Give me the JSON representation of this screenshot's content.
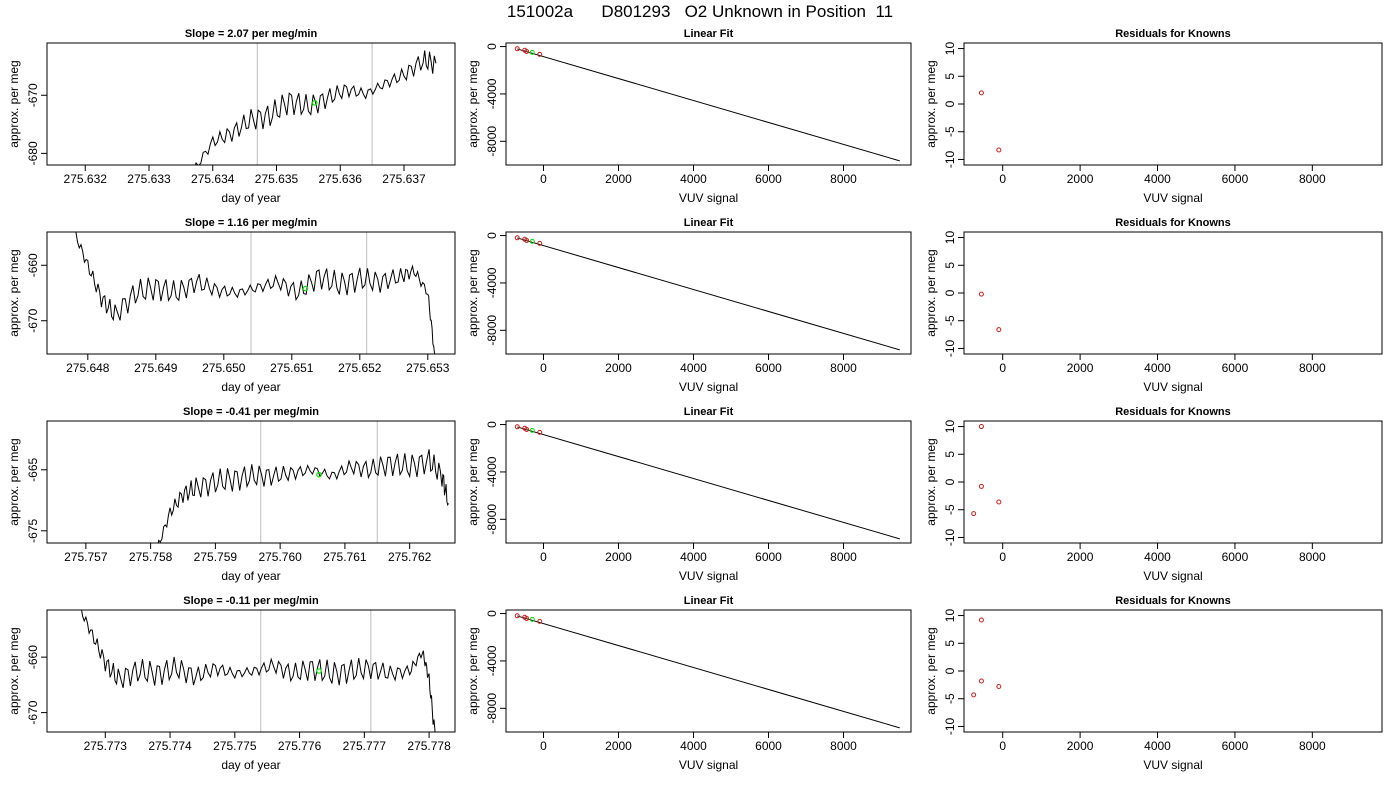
{
  "page_title": "151002a      D801293   O2 Unknown in Position  11",
  "chart_data": [
    {
      "type": "line",
      "kind": "timeseries",
      "row": 0,
      "title": "Slope =  2.07  per meg/min",
      "xlabel": "day of year",
      "ylabel": "approx. per meg",
      "xlim": [
        275.6314,
        275.6378
      ],
      "ylim": [
        -682,
        -661
      ],
      "xticks": [
        "275.632",
        "275.633",
        "275.634",
        "275.635",
        "275.636",
        "275.637"
      ],
      "yticks": [
        "-670",
        "-680"
      ],
      "vlines": [
        275.6347,
        275.6365
      ],
      "green_point": [
        275.6356,
        -671.3
      ],
      "series": [
        {
          "x": [
            275.6337,
            275.634,
            275.6343,
            275.6346,
            275.6349,
            275.6352,
            275.6355,
            275.6358,
            275.6361,
            275.6364,
            275.6367,
            275.637,
            275.6373,
            275.6375
          ],
          "y": [
            -683,
            -678,
            -676.5,
            -674.2,
            -673.5,
            -671,
            -672,
            -670.5,
            -669,
            -669.8,
            -668,
            -666.5,
            -664,
            -664.5
          ]
        }
      ]
    },
    {
      "type": "scatter",
      "kind": "fit",
      "row": 0,
      "title": "Linear Fit",
      "xlabel": "VUV signal",
      "ylabel": "approx. per meg",
      "xlim": [
        -1000,
        9800
      ],
      "ylim": [
        -10000,
        300
      ],
      "xticks": [
        "0",
        "2000",
        "4000",
        "6000",
        "8000"
      ],
      "yticks": [
        "0",
        "-4000",
        "-8000"
      ],
      "fit_line": [
        [
          -700,
          -200
        ],
        [
          9500,
          -9650
        ]
      ],
      "points": [
        [
          -700,
          -190
        ],
        [
          -500,
          -310
        ],
        [
          -450,
          -420
        ],
        [
          -100,
          -660
        ]
      ],
      "green_points": [
        [
          -300,
          -490
        ]
      ]
    },
    {
      "type": "scatter",
      "kind": "residuals",
      "row": 0,
      "title": "Residuals for Knowns",
      "xlabel": "VUV signal",
      "ylabel": "approx. per meg",
      "xlim": [
        -1000,
        9800
      ],
      "ylim": [
        -11,
        11
      ],
      "xticks": [
        "0",
        "2000",
        "4000",
        "6000",
        "8000"
      ],
      "yticks": [
        "10",
        "5",
        "0",
        "-5",
        "-10"
      ],
      "points": [
        [
          -550,
          2
        ],
        [
          -100,
          -8.3
        ]
      ]
    },
    {
      "type": "line",
      "kind": "timeseries",
      "row": 1,
      "title": "Slope =  1.16  per meg/min",
      "xlabel": "day of year",
      "ylabel": "approx. per meg",
      "xlim": [
        275.6474,
        275.6534
      ],
      "ylim": [
        -676,
        -654
      ],
      "xticks": [
        "275.648",
        "275.649",
        "275.650",
        "275.651",
        "275.652",
        "275.653"
      ],
      "yticks": [
        "-660",
        "-670"
      ],
      "vlines": [
        275.6504,
        275.6521
      ],
      "green_point": [
        275.6512,
        -664.2
      ],
      "series": [
        {
          "x": [
            275.6478,
            275.648,
            275.6482,
            275.6484,
            275.6487,
            275.649,
            275.6493,
            275.6496,
            275.6499,
            275.6502,
            275.6505,
            275.6508,
            275.6511,
            275.6514,
            275.6517,
            275.652,
            275.6523,
            275.6526,
            275.6528,
            275.653,
            275.6531
          ],
          "y": [
            -654,
            -660,
            -666,
            -669,
            -665,
            -664,
            -665,
            -663,
            -664.5,
            -665,
            -664,
            -663,
            -665,
            -662,
            -663.5,
            -662.5,
            -663,
            -662,
            -661,
            -665,
            -676
          ]
        }
      ]
    },
    {
      "type": "scatter",
      "kind": "fit",
      "row": 1,
      "title": "Linear Fit",
      "xlabel": "VUV signal",
      "ylabel": "approx. per meg",
      "xlim": [
        -1000,
        9800
      ],
      "ylim": [
        -10000,
        300
      ],
      "xticks": [
        "0",
        "2000",
        "4000",
        "6000",
        "8000"
      ],
      "yticks": [
        "0",
        "-4000",
        "-8000"
      ],
      "fit_line": [
        [
          -700,
          -200
        ],
        [
          9500,
          -9650
        ]
      ],
      "points": [
        [
          -700,
          -190
        ],
        [
          -500,
          -310
        ],
        [
          -450,
          -420
        ],
        [
          -100,
          -660
        ]
      ],
      "green_points": [
        [
          -300,
          -490
        ]
      ]
    },
    {
      "type": "scatter",
      "kind": "residuals",
      "row": 1,
      "title": "Residuals for Knowns",
      "xlabel": "VUV signal",
      "ylabel": "approx. per meg",
      "xlim": [
        -1000,
        9800
      ],
      "ylim": [
        -11,
        11
      ],
      "xticks": [
        "0",
        "2000",
        "4000",
        "6000",
        "8000"
      ],
      "yticks": [
        "10",
        "5",
        "0",
        "-5",
        "-10"
      ],
      "points": [
        [
          -550,
          -0.2
        ],
        [
          -100,
          -6.6
        ]
      ]
    },
    {
      "type": "line",
      "kind": "timeseries",
      "row": 2,
      "title": "Slope =  -0.41  per meg/min",
      "xlabel": "day of year",
      "ylabel": "approx. per meg",
      "xlim": [
        275.7564,
        275.7627
      ],
      "ylim": [
        -677,
        -657
      ],
      "xticks": [
        "275.757",
        "275.758",
        "275.759",
        "275.760",
        "275.761",
        "275.762"
      ],
      "yticks": [
        "-665",
        "-675"
      ],
      "vlines": [
        275.7597,
        275.7615
      ],
      "green_point": [
        275.7606,
        -665.8
      ],
      "series": [
        {
          "x": [
            275.7581,
            275.7583,
            275.7585,
            275.7587,
            275.759,
            275.7593,
            275.7596,
            275.7599,
            275.7602,
            275.7605,
            275.7608,
            275.7611,
            275.7614,
            275.7617,
            275.762,
            275.7623,
            275.7625,
            275.7626
          ],
          "y": [
            -678,
            -672,
            -669,
            -668,
            -667,
            -666.5,
            -666,
            -666,
            -665.5,
            -665,
            -666,
            -664.5,
            -665,
            -664,
            -664.5,
            -663.5,
            -666,
            -670.5
          ]
        }
      ]
    },
    {
      "type": "scatter",
      "kind": "fit",
      "row": 2,
      "title": "Linear Fit",
      "xlabel": "VUV signal",
      "ylabel": "approx. per meg",
      "xlim": [
        -1000,
        9800
      ],
      "ylim": [
        -10000,
        300
      ],
      "xticks": [
        "0",
        "2000",
        "4000",
        "6000",
        "8000"
      ],
      "yticks": [
        "0",
        "-4000",
        "-8000"
      ],
      "fit_line": [
        [
          -700,
          -200
        ],
        [
          9500,
          -9650
        ]
      ],
      "points": [
        [
          -700,
          -190
        ],
        [
          -500,
          -310
        ],
        [
          -450,
          -420
        ],
        [
          -100,
          -660
        ]
      ],
      "green_points": [
        [
          -300,
          -490
        ]
      ]
    },
    {
      "type": "scatter",
      "kind": "residuals",
      "row": 2,
      "title": "Residuals for Knowns",
      "xlabel": "VUV signal",
      "ylabel": "approx. per meg",
      "xlim": [
        -1000,
        9800
      ],
      "ylim": [
        -11,
        11
      ],
      "xticks": [
        "0",
        "2000",
        "4000",
        "6000",
        "8000"
      ],
      "yticks": [
        "10",
        "5",
        "0",
        "-5",
        "-10"
      ],
      "points": [
        [
          -750,
          -5.7
        ],
        [
          -550,
          10
        ],
        [
          -550,
          -0.8
        ],
        [
          -100,
          -3.6
        ]
      ]
    },
    {
      "type": "line",
      "kind": "timeseries",
      "row": 3,
      "title": "Slope =  -0.11  per meg/min",
      "xlabel": "day of year",
      "ylabel": "approx. per meg",
      "xlim": [
        275.7721,
        275.7784
      ],
      "ylim": [
        -673.5,
        -651.5
      ],
      "xticks": [
        "275.773",
        "275.774",
        "275.775",
        "275.776",
        "275.777",
        "275.778"
      ],
      "yticks": [
        "-660",
        "-670"
      ],
      "vlines": [
        275.7754,
        275.7771
      ],
      "green_point": [
        275.7763,
        -662.5
      ],
      "series": [
        {
          "x": [
            275.7726,
            275.7728,
            275.773,
            275.7732,
            275.7735,
            275.7738,
            275.7741,
            275.7744,
            275.7747,
            275.775,
            275.7753,
            275.7756,
            275.7759,
            275.7762,
            275.7765,
            275.7768,
            275.7771,
            275.7774,
            275.7777,
            275.7779,
            275.778,
            275.7781
          ],
          "y": [
            -651,
            -656,
            -661,
            -664,
            -662.5,
            -663,
            -662,
            -663.5,
            -662,
            -663,
            -662.5,
            -661.5,
            -663,
            -662,
            -663,
            -662.5,
            -662,
            -663,
            -662.5,
            -659,
            -664,
            -675
          ]
        }
      ]
    },
    {
      "type": "scatter",
      "kind": "fit",
      "row": 3,
      "title": "Linear Fit",
      "xlabel": "VUV signal",
      "ylabel": "approx. per meg",
      "xlim": [
        -1000,
        9800
      ],
      "ylim": [
        -10000,
        300
      ],
      "xticks": [
        "0",
        "2000",
        "4000",
        "6000",
        "8000"
      ],
      "yticks": [
        "0",
        "-4000",
        "-8000"
      ],
      "fit_line": [
        [
          -700,
          -200
        ],
        [
          9500,
          -9650
        ]
      ],
      "points": [
        [
          -700,
          -190
        ],
        [
          -500,
          -310
        ],
        [
          -450,
          -420
        ],
        [
          -100,
          -660
        ]
      ],
      "green_points": [
        [
          -300,
          -490
        ]
      ]
    },
    {
      "type": "scatter",
      "kind": "residuals",
      "row": 3,
      "title": "Residuals for Knowns",
      "xlabel": "VUV signal",
      "ylabel": "approx. per meg",
      "xlim": [
        -1000,
        9800
      ],
      "ylim": [
        -11,
        11
      ],
      "xticks": [
        "0",
        "2000",
        "4000",
        "6000",
        "8000"
      ],
      "yticks": [
        "10",
        "5",
        "0",
        "-5",
        "-10"
      ],
      "points": [
        [
          -750,
          -4.3
        ],
        [
          -550,
          9.2
        ],
        [
          -550,
          -1.8
        ],
        [
          -100,
          -2.8
        ]
      ]
    }
  ],
  "colors": {
    "axis": "#000000",
    "vline": "#c8c8c8",
    "point": "#c81e1e",
    "green": "#00e600",
    "line": "#000000"
  }
}
